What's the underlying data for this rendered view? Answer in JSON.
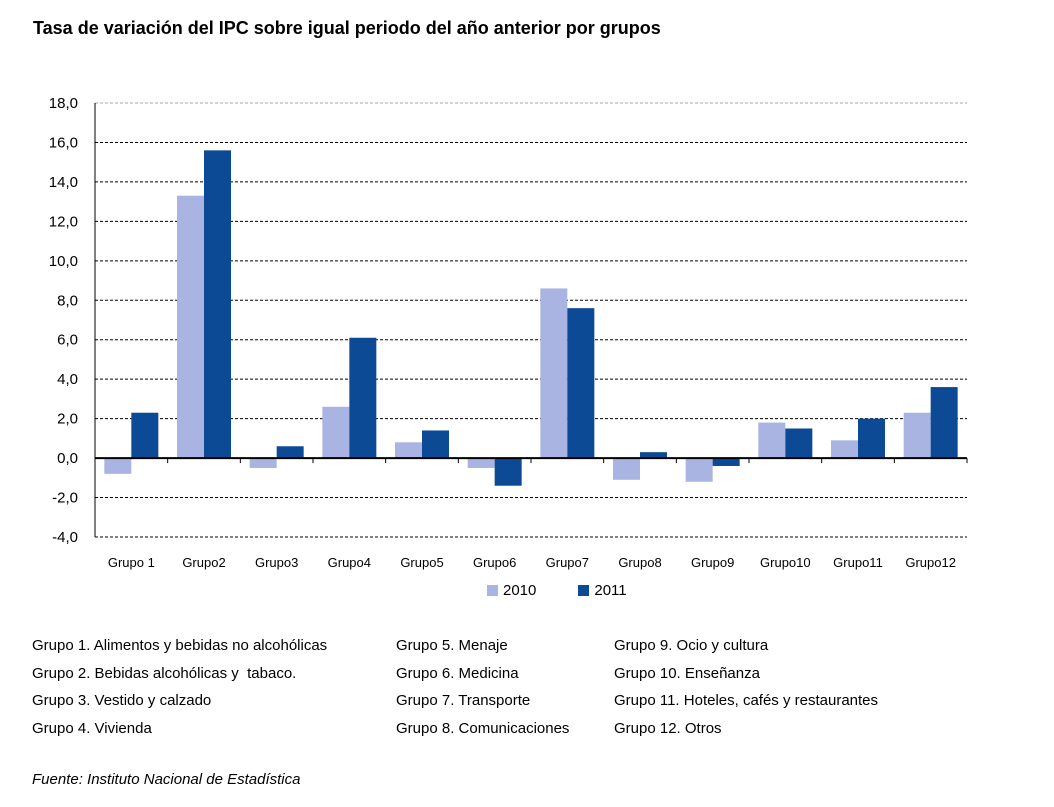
{
  "title": "Tasa de variación del IPC sobre igual periodo del año anterior por grupos",
  "chart_data": {
    "type": "bar",
    "categories": [
      "Grupo 1",
      "Grupo2",
      "Grupo3",
      "Grupo4",
      "Grupo5",
      "Grupo6",
      "Grupo7",
      "Grupo8",
      "Grupo9",
      "Grupo10",
      "Grupo11",
      "Grupo12"
    ],
    "series": [
      {
        "name": "2010",
        "color": "#a9b4e2",
        "values": [
          -0.8,
          13.3,
          -0.5,
          2.6,
          0.8,
          -0.5,
          8.6,
          -1.1,
          -1.2,
          1.8,
          0.9,
          2.3
        ]
      },
      {
        "name": "2011",
        "color": "#0d4a95",
        "values": [
          2.3,
          15.6,
          0.6,
          6.1,
          1.4,
          -1.4,
          7.6,
          0.3,
          -0.4,
          1.5,
          2.0,
          3.6
        ]
      }
    ],
    "ylim": [
      -4.0,
      18.0
    ],
    "yticks": [
      "-4,0",
      "-2,0",
      "0,0",
      "2,0",
      "4,0",
      "6,0",
      "8,0",
      "10,0",
      "12,0",
      "14,0",
      "16,0",
      "18,0"
    ],
    "grid": true,
    "legend": "bottom"
  },
  "notes": {
    "col1": [
      "Grupo 1. Alimentos y bebidas no alcohólicas",
      "Grupo 2. Bebidas alcohólicas y  tabaco.",
      "Grupo 3. Vestido y calzado",
      "Grupo 4. Vivienda"
    ],
    "col2": [
      "Grupo 5. Menaje",
      "Grupo 6. Medicina",
      "Grupo 7. Transporte",
      "Grupo 8. Comunicaciones"
    ],
    "col3": [
      "Grupo 9. Ocio y cultura",
      "Grupo 10. Enseñanza",
      "Grupo 11. Hoteles, cafés y restaurantes",
      "Grupo 12. Otros"
    ]
  },
  "source": "Fuente: Instituto Nacional de Estadística"
}
